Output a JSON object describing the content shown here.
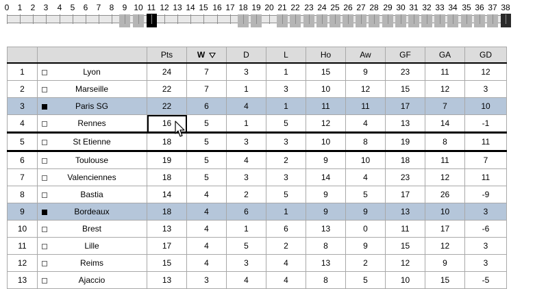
{
  "slider": {
    "labels": [
      "0",
      "1",
      "2",
      "3",
      "4",
      "5",
      "6",
      "7",
      "8",
      "9",
      "10",
      "11",
      "12",
      "13",
      "14",
      "15",
      "16",
      "17",
      "18",
      "19",
      "20",
      "21",
      "22",
      "23",
      "24",
      "25",
      "26",
      "27",
      "28",
      "29",
      "30",
      "31",
      "32",
      "33",
      "34",
      "35",
      "36",
      "37",
      "38"
    ],
    "current_round": "11",
    "played_rounds": [
      "9",
      "10",
      "18",
      "19",
      "21",
      "22",
      "23",
      "24",
      "25",
      "26",
      "27",
      "28",
      "29",
      "30",
      "31",
      "32",
      "33",
      "34",
      "35",
      "36",
      "37"
    ],
    "last_round": "38"
  },
  "table": {
    "headers": {
      "rank": "",
      "team": "",
      "pts": "Pts",
      "w": "W",
      "d": "D",
      "l": "L",
      "ho": "Ho",
      "aw": "Aw",
      "gf": "GF",
      "ga": "GA",
      "gd": "GD"
    },
    "sort_column": "W",
    "sort_direction": "descending",
    "rows": [
      {
        "rank": "1",
        "team": "Lyon",
        "pts": "24",
        "w": "7",
        "d": "3",
        "l": "1",
        "ho": "15",
        "aw": "9",
        "gf": "23",
        "ga": "11",
        "gd": "12",
        "marked": false,
        "highlight": false
      },
      {
        "rank": "2",
        "team": "Marseille",
        "pts": "22",
        "w": "7",
        "d": "1",
        "l": "3",
        "ho": "10",
        "aw": "12",
        "gf": "15",
        "ga": "12",
        "gd": "3",
        "marked": false,
        "highlight": false
      },
      {
        "rank": "3",
        "team": "Paris SG",
        "pts": "22",
        "w": "6",
        "d": "4",
        "l": "1",
        "ho": "11",
        "aw": "11",
        "gf": "17",
        "ga": "7",
        "gd": "10",
        "marked": true,
        "highlight": true
      },
      {
        "rank": "4",
        "team": "Rennes",
        "pts": "16",
        "w": "5",
        "d": "1",
        "l": "5",
        "ho": "12",
        "aw": "4",
        "gf": "13",
        "ga": "14",
        "gd": "-1",
        "marked": false,
        "highlight": false
      },
      {
        "rank": "5",
        "team": "St Etienne",
        "pts": "18",
        "w": "5",
        "d": "3",
        "l": "3",
        "ho": "10",
        "aw": "8",
        "gf": "19",
        "ga": "8",
        "gd": "11",
        "marked": false,
        "highlight": false
      },
      {
        "rank": "6",
        "team": "Toulouse",
        "pts": "19",
        "w": "5",
        "d": "4",
        "l": "2",
        "ho": "9",
        "aw": "10",
        "gf": "18",
        "ga": "11",
        "gd": "7",
        "marked": false,
        "highlight": false
      },
      {
        "rank": "7",
        "team": "Valenciennes",
        "pts": "18",
        "w": "5",
        "d": "3",
        "l": "3",
        "ho": "14",
        "aw": "4",
        "gf": "23",
        "ga": "12",
        "gd": "11",
        "marked": false,
        "highlight": false
      },
      {
        "rank": "8",
        "team": "Bastia",
        "pts": "14",
        "w": "4",
        "d": "2",
        "l": "5",
        "ho": "9",
        "aw": "5",
        "gf": "17",
        "ga": "26",
        "gd": "-9",
        "marked": false,
        "highlight": false
      },
      {
        "rank": "9",
        "team": "Bordeaux",
        "pts": "18",
        "w": "4",
        "d": "6",
        "l": "1",
        "ho": "9",
        "aw": "9",
        "gf": "13",
        "ga": "10",
        "gd": "3",
        "marked": true,
        "highlight": true
      },
      {
        "rank": "10",
        "team": "Brest",
        "pts": "13",
        "w": "4",
        "d": "1",
        "l": "6",
        "ho": "13",
        "aw": "0",
        "gf": "11",
        "ga": "17",
        "gd": "-6",
        "marked": false,
        "highlight": false
      },
      {
        "rank": "11",
        "team": "Lille",
        "pts": "17",
        "w": "4",
        "d": "5",
        "l": "2",
        "ho": "8",
        "aw": "9",
        "gf": "15",
        "ga": "12",
        "gd": "3",
        "marked": false,
        "highlight": false
      },
      {
        "rank": "12",
        "team": "Reims",
        "pts": "15",
        "w": "4",
        "d": "3",
        "l": "4",
        "ho": "13",
        "aw": "2",
        "gf": "12",
        "ga": "9",
        "gd": "3",
        "marked": false,
        "highlight": false
      },
      {
        "rank": "13",
        "team": "Ajaccio",
        "pts": "13",
        "w": "3",
        "d": "4",
        "l": "4",
        "ho": "8",
        "aw": "5",
        "gf": "10",
        "ga": "15",
        "gd": "-5",
        "marked": false,
        "highlight": false
      }
    ],
    "separator_after_ranks": [
      "4",
      "5"
    ],
    "selected_cell": {
      "row": "4",
      "column": "pts"
    }
  },
  "colors": {
    "header_bg": "#dcdcdc",
    "highlight_row": "#b5c6da",
    "slider_played": "#b5b5b5",
    "slider_current": "#000000"
  },
  "icons": {
    "cursor": "arrow-cursor-icon",
    "sort": "sort-desc-icon",
    "mark": "row-mark-icon"
  }
}
